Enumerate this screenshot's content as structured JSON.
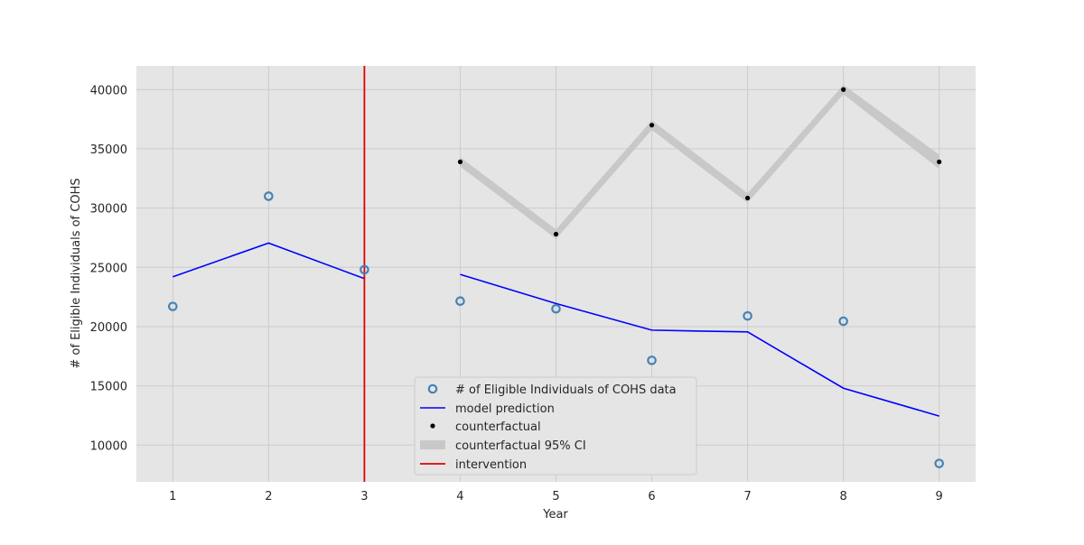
{
  "chart_data": {
    "type": "line",
    "title": "",
    "xlabel": "Year",
    "ylabel": "# of Eligible Individuals of COHS",
    "xlim": [
      0.62,
      9.38
    ],
    "ylim": [
      6900,
      42000
    ],
    "xticks": [
      1,
      2,
      3,
      4,
      5,
      6,
      7,
      8,
      9
    ],
    "yticks": [
      10000,
      15000,
      20000,
      25000,
      30000,
      35000,
      40000
    ],
    "grid": true,
    "legend_position": "lower-center",
    "colors": {
      "background": "#e5e5e5",
      "grid": "#cccccc",
      "data_marker": "#4682b4",
      "model_line": "#0000ff",
      "counterfactual": "#000000",
      "ci_band": "#c8c8c8",
      "intervention": "#e00000"
    },
    "series": [
      {
        "name": "# of Eligible Individuals of COHS data",
        "kind": "marker",
        "x": [
          1,
          2,
          3,
          4,
          5,
          6,
          7,
          8,
          9
        ],
        "y": [
          21700,
          31000,
          24800,
          22150,
          21500,
          17150,
          20900,
          20450,
          8450
        ]
      },
      {
        "name": "model prediction",
        "kind": "line",
        "segments": [
          {
            "x": [
              1,
              2,
              3
            ],
            "y": [
              24200,
              27050,
              24050
            ]
          },
          {
            "x": [
              4,
              5,
              6,
              7,
              8,
              9
            ],
            "y": [
              24400,
              21950,
              19700,
              19550,
              14800,
              12450
            ]
          }
        ]
      },
      {
        "name": "counterfactual",
        "kind": "point",
        "x": [
          4,
          5,
          6,
          7,
          8,
          9
        ],
        "y": [
          33900,
          27800,
          37000,
          30850,
          40000,
          33900
        ]
      },
      {
        "name": "counterfactual 95% CI",
        "kind": "band",
        "x": [
          4,
          5,
          6,
          7,
          8,
          9
        ],
        "lower": [
          33500,
          27400,
          36600,
          30450,
          39600,
          33300
        ],
        "upper": [
          34300,
          28200,
          37400,
          31250,
          40400,
          34500
        ]
      },
      {
        "name": "intervention",
        "kind": "vline",
        "x": 3
      }
    ]
  }
}
